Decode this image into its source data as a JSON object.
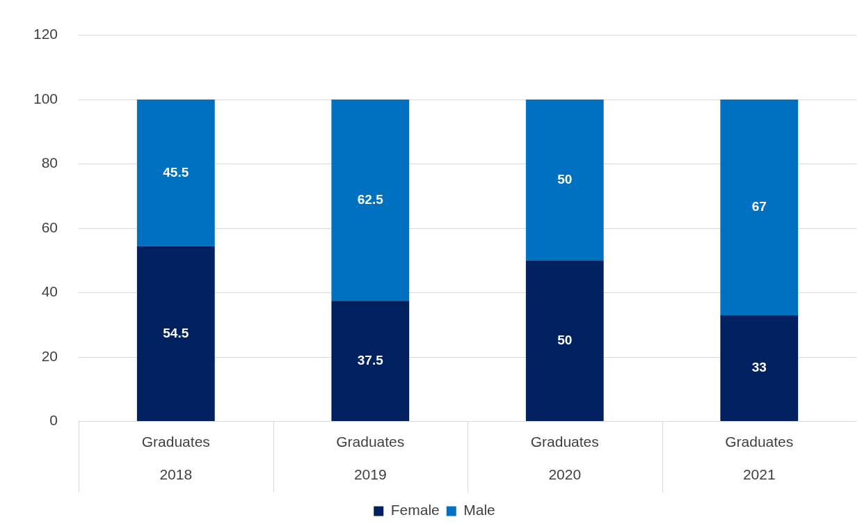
{
  "chart_data": {
    "type": "bar",
    "stacked": true,
    "categories": [
      "Graduates\n2018",
      "Graduates\n2019",
      "Graduates\n2020",
      "Graduates\n2021"
    ],
    "series": [
      {
        "name": "Female",
        "color": "#002060",
        "values": [
          54.5,
          37.5,
          50,
          33
        ]
      },
      {
        "name": "Male",
        "color": "#0070c0",
        "values": [
          45.5,
          62.5,
          50,
          67
        ]
      }
    ],
    "ylim": [
      0,
      120
    ],
    "yticks": [
      0,
      20,
      40,
      60,
      80,
      100,
      120
    ],
    "grid": "y",
    "legend": "bottom",
    "data_labels": true
  }
}
